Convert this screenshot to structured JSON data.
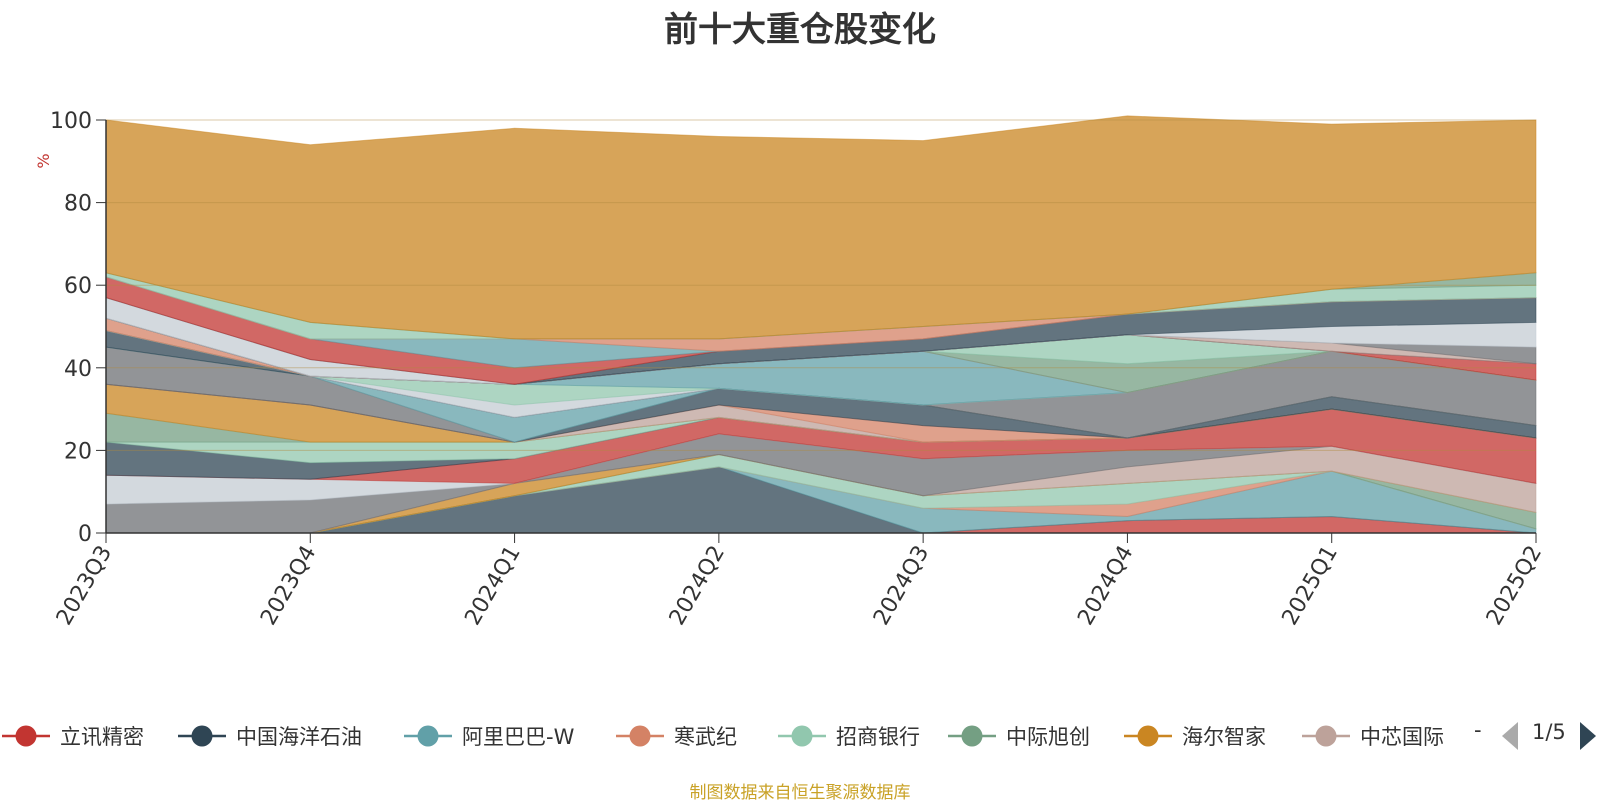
{
  "title": "前十大重仓股变化",
  "source_note": "制图数据来自恒生聚源数据库",
  "legend_page": "1/5",
  "legend_more": "-",
  "chart_data": {
    "type": "area",
    "stacked": true,
    "ylabel": "%",
    "ylim": [
      0,
      100
    ],
    "yticks": [
      "0",
      "20",
      "40",
      "60",
      "80",
      "100"
    ],
    "categories": [
      "2023Q3",
      "2023Q4",
      "2024Q1",
      "2024Q2",
      "2024Q3",
      "2024Q4",
      "2025Q1",
      "2025Q2"
    ],
    "legend_position": "bottom",
    "grid": true,
    "series": [
      {
        "name": "立讯精密",
        "color": "#c23531",
        "values": [
          0,
          0,
          0,
          0,
          0,
          3,
          4,
          0
        ]
      },
      {
        "name": "中国海洋石油",
        "color": "#2f4554",
        "values": [
          0,
          0,
          9,
          16,
          0,
          0,
          0,
          0
        ]
      },
      {
        "name": "阿里巴巴-W",
        "color": "#61a0a8",
        "values": [
          0,
          0,
          0,
          0,
          6,
          1,
          11,
          1
        ]
      },
      {
        "name": "寒武纪",
        "color": "#d48265",
        "values": [
          0,
          0,
          0,
          0,
          0,
          3,
          0,
          0
        ]
      },
      {
        "name": "招商银行",
        "color": "#91c7ae",
        "values": [
          0,
          0,
          0,
          3,
          3,
          5,
          0,
          0
        ]
      },
      {
        "name": "中际旭创",
        "color": "#749f83",
        "values": [
          0,
          0,
          0,
          0,
          0,
          0,
          0,
          4
        ]
      },
      {
        "name": "海尔智家",
        "color": "#ca8622",
        "values": [
          0,
          0,
          3,
          0,
          0,
          0,
          0,
          0
        ]
      },
      {
        "name": "中芯国际",
        "color": "#bda29a",
        "values": [
          0,
          0,
          0,
          0,
          0,
          4,
          6,
          7
        ]
      },
      {
        "name": "",
        "color": "#6e7074",
        "values": [
          7,
          8,
          0,
          5,
          9,
          4,
          0,
          0
        ]
      },
      {
        "name": "",
        "color": "#c4ccd3",
        "values": [
          7,
          5,
          0,
          0,
          0,
          0,
          0,
          0
        ]
      },
      {
        "name": "",
        "color": "#c23531",
        "values": [
          0,
          0,
          6,
          4,
          4,
          3,
          9,
          11
        ]
      },
      {
        "name": "",
        "color": "#2f4554",
        "values": [
          8,
          4,
          0,
          0,
          0,
          0,
          0,
          0
        ]
      },
      {
        "name": "",
        "color": "#91c7ae",
        "values": [
          0,
          5,
          4,
          0,
          0,
          0,
          0,
          0
        ]
      },
      {
        "name": "",
        "color": "#749f83",
        "values": [
          7,
          0,
          0,
          0,
          0,
          0,
          0,
          0
        ]
      },
      {
        "name": "",
        "color": "#ca8622",
        "values": [
          7,
          9,
          0,
          0,
          0,
          0,
          0,
          0
        ]
      },
      {
        "name": "",
        "color": "#bda29a",
        "values": [
          0,
          0,
          0,
          3,
          0,
          0,
          0,
          0
        ]
      },
      {
        "name": "",
        "color": "#d48265",
        "values": [
          0,
          0,
          0,
          0,
          4,
          0,
          0,
          0
        ]
      },
      {
        "name": "",
        "color": "#2f4554",
        "values": [
          0,
          0,
          0,
          4,
          5,
          0,
          3,
          3
        ]
      },
      {
        "name": "",
        "color": "#6e7074",
        "values": [
          9,
          7,
          0,
          0,
          0,
          0,
          0,
          0
        ]
      },
      {
        "name": "",
        "color": "#61a0a8",
        "values": [
          0,
          0,
          6,
          0,
          0,
          0,
          0,
          0
        ]
      },
      {
        "name": "",
        "color": "#2f4554",
        "values": [
          4,
          0,
          0,
          0,
          0,
          0,
          0,
          0
        ]
      },
      {
        "name": "",
        "color": "#6e7074",
        "values": [
          0,
          0,
          0,
          0,
          0,
          11,
          11,
          11
        ]
      },
      {
        "name": "",
        "color": "#c4ccd3",
        "values": [
          0,
          0,
          3,
          0,
          0,
          0,
          0,
          0
        ]
      },
      {
        "name": "",
        "color": "#91c7ae",
        "values": [
          0,
          0,
          5,
          0,
          0,
          0,
          0,
          0
        ]
      },
      {
        "name": "",
        "color": "#61a0a8",
        "values": [
          0,
          0,
          0,
          6,
          13,
          0,
          0,
          0
        ]
      },
      {
        "name": "",
        "color": "#d48265",
        "values": [
          3,
          0,
          0,
          0,
          0,
          0,
          0,
          0
        ]
      },
      {
        "name": "",
        "color": "#749f83",
        "values": [
          0,
          0,
          0,
          0,
          0,
          7,
          0,
          0
        ]
      },
      {
        "name": "",
        "color": "#91c7ae",
        "values": [
          0,
          0,
          0,
          0,
          0,
          7,
          0,
          0
        ]
      },
      {
        "name": "",
        "color": "#c23531",
        "values": [
          0,
          0,
          0,
          0,
          0,
          0,
          0,
          4
        ]
      },
      {
        "name": "",
        "color": "#2f4554",
        "values": [
          0,
          0,
          0,
          0,
          0,
          0,
          0,
          0
        ]
      },
      {
        "name": "",
        "color": "#bda29a",
        "values": [
          0,
          0,
          0,
          0,
          0,
          0,
          2,
          0
        ]
      },
      {
        "name": "",
        "color": "#6e7074",
        "values": [
          0,
          0,
          0,
          0,
          0,
          0,
          0,
          4
        ]
      },
      {
        "name": "",
        "color": "#c4ccd3",
        "values": [
          5,
          4,
          0,
          0,
          0,
          0,
          4,
          6
        ]
      },
      {
        "name": "",
        "color": "#2f4554",
        "values": [
          0,
          0,
          0,
          3,
          3,
          5,
          6,
          6
        ]
      },
      {
        "name": "",
        "color": "#c23531",
        "values": [
          5,
          5,
          4,
          0,
          0,
          0,
          0,
          0
        ]
      },
      {
        "name": "",
        "color": "#61a0a8",
        "values": [
          0,
          0,
          7,
          0,
          0,
          0,
          0,
          0
        ]
      },
      {
        "name": "",
        "color": "#d48265",
        "values": [
          0,
          0,
          0,
          3,
          3,
          0,
          0,
          0
        ]
      },
      {
        "name": "",
        "color": "#91c7ae",
        "values": [
          1,
          4,
          0,
          0,
          0,
          0,
          3,
          3
        ]
      },
      {
        "name": "",
        "color": "#749f83",
        "values": [
          0,
          0,
          0,
          0,
          0,
          0,
          0,
          3
        ]
      },
      {
        "name": "",
        "color": "#ca8622",
        "values": [
          37,
          43,
          51,
          49,
          45,
          48,
          40,
          37
        ]
      }
    ]
  }
}
